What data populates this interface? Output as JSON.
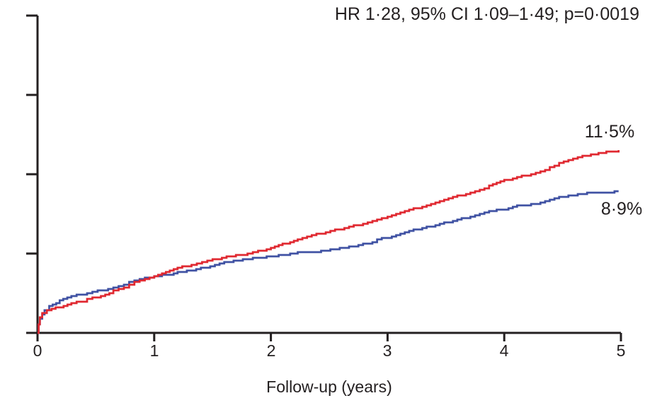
{
  "annotation": "HR 1·28, 95% CI 1·09–1·49; p=0·0019",
  "colors": {
    "axis": "#231f20",
    "text": "#231f20",
    "red_series": "#e02830",
    "blue_series": "#3f51a3",
    "background": "#ffffff"
  },
  "chart_data": {
    "type": "line",
    "subtype": "kaplan-meier-cumulative-incidence",
    "title": "",
    "annotation": "HR 1·28, 95% CI 1·09–1·49; p=0·0019",
    "xlabel": "Follow-up (years)",
    "ylabel": "",
    "xlim": [
      0,
      5
    ],
    "ylim": [
      0,
      20
    ],
    "x_ticks": [
      "0",
      "1",
      "2",
      "3",
      "4",
      "5"
    ],
    "y_tick_count": 5,
    "y_tick_labels_visible": false,
    "y_tick_interval_pct": 5,
    "grid": false,
    "legend_position": "none",
    "series": [
      {
        "name": "blue",
        "color": "#3f51a3",
        "end_label": "8·9%",
        "end_value_pct": 8.9,
        "points": [
          [
            0,
            0
          ],
          [
            0.01,
            0.5
          ],
          [
            0.02,
            0.85
          ],
          [
            0.04,
            1.2
          ],
          [
            0.06,
            1.45
          ],
          [
            0.1,
            1.7
          ],
          [
            0.16,
            1.9
          ],
          [
            0.22,
            2.15
          ],
          [
            0.29,
            2.3
          ],
          [
            0.38,
            2.45
          ],
          [
            0.47,
            2.6
          ],
          [
            0.56,
            2.7
          ],
          [
            0.65,
            2.85
          ],
          [
            0.74,
            3.05
          ],
          [
            0.83,
            3.3
          ],
          [
            0.92,
            3.45
          ],
          [
            1.0,
            3.55
          ],
          [
            1.1,
            3.65
          ],
          [
            1.2,
            3.8
          ],
          [
            1.32,
            3.95
          ],
          [
            1.44,
            4.15
          ],
          [
            1.56,
            4.4
          ],
          [
            1.68,
            4.55
          ],
          [
            1.8,
            4.65
          ],
          [
            1.89,
            4.75
          ],
          [
            2.0,
            4.8
          ],
          [
            2.1,
            4.9
          ],
          [
            2.23,
            5.05
          ],
          [
            2.35,
            5.1
          ],
          [
            2.47,
            5.2
          ],
          [
            2.59,
            5.35
          ],
          [
            2.71,
            5.45
          ],
          [
            2.83,
            5.65
          ],
          [
            2.95,
            5.95
          ],
          [
            3.0,
            6.0
          ],
          [
            3.11,
            6.25
          ],
          [
            3.26,
            6.55
          ],
          [
            3.41,
            6.8
          ],
          [
            3.56,
            7.05
          ],
          [
            3.71,
            7.35
          ],
          [
            3.87,
            7.65
          ],
          [
            4.0,
            7.8
          ],
          [
            4.11,
            8.0
          ],
          [
            4.23,
            8.1
          ],
          [
            4.35,
            8.3
          ],
          [
            4.47,
            8.55
          ],
          [
            4.59,
            8.7
          ],
          [
            4.71,
            8.8
          ],
          [
            4.84,
            8.85
          ],
          [
            4.98,
            8.9
          ]
        ]
      },
      {
        "name": "red",
        "color": "#e02830",
        "end_label": "11·5%",
        "end_value_pct": 11.5,
        "points": [
          [
            0,
            0
          ],
          [
            0.01,
            0.55
          ],
          [
            0.02,
            0.95
          ],
          [
            0.04,
            1.25
          ],
          [
            0.08,
            1.4
          ],
          [
            0.12,
            1.5
          ],
          [
            0.19,
            1.65
          ],
          [
            0.29,
            1.85
          ],
          [
            0.38,
            2.0
          ],
          [
            0.47,
            2.2
          ],
          [
            0.58,
            2.4
          ],
          [
            0.65,
            2.65
          ],
          [
            0.74,
            2.9
          ],
          [
            0.83,
            3.2
          ],
          [
            0.92,
            3.4
          ],
          [
            1.0,
            3.6
          ],
          [
            1.1,
            3.8
          ],
          [
            1.2,
            4.1
          ],
          [
            1.32,
            4.3
          ],
          [
            1.41,
            4.45
          ],
          [
            1.5,
            4.6
          ],
          [
            1.62,
            4.8
          ],
          [
            1.74,
            4.9
          ],
          [
            1.8,
            5.0
          ],
          [
            1.89,
            5.15
          ],
          [
            2.0,
            5.35
          ],
          [
            2.1,
            5.6
          ],
          [
            2.23,
            5.85
          ],
          [
            2.35,
            6.15
          ],
          [
            2.47,
            6.35
          ],
          [
            2.59,
            6.55
          ],
          [
            2.71,
            6.75
          ],
          [
            2.83,
            6.95
          ],
          [
            2.95,
            7.2
          ],
          [
            3.0,
            7.3
          ],
          [
            3.11,
            7.6
          ],
          [
            3.26,
            7.9
          ],
          [
            3.41,
            8.25
          ],
          [
            3.56,
            8.55
          ],
          [
            3.71,
            8.85
          ],
          [
            3.87,
            9.25
          ],
          [
            4.0,
            9.6
          ],
          [
            4.11,
            9.8
          ],
          [
            4.23,
            10.0
          ],
          [
            4.35,
            10.3
          ],
          [
            4.47,
            10.7
          ],
          [
            4.59,
            11.0
          ],
          [
            4.71,
            11.2
          ],
          [
            4.84,
            11.35
          ],
          [
            4.98,
            11.5
          ]
        ]
      }
    ]
  }
}
